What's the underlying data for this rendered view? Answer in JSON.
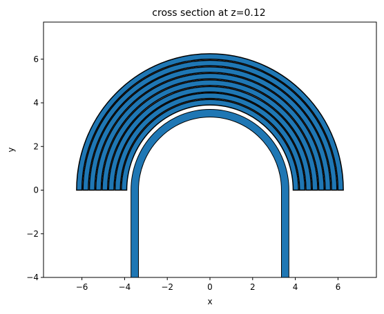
{
  "chart_data": {
    "type": "area",
    "title": "cross section at z=0.12",
    "xlabel": "x",
    "ylabel": "y",
    "xlim": [
      -7.8,
      7.8
    ],
    "ylim": [
      -4,
      7.7
    ],
    "xticks": [
      -6,
      -4,
      -2,
      0,
      2,
      4,
      6
    ],
    "yticks": [
      -4,
      -2,
      0,
      2,
      4,
      6
    ],
    "xtick_labels": [
      "−6",
      "−4",
      "−2",
      "0",
      "2",
      "4",
      "6"
    ],
    "ytick_labels": [
      "−4",
      "−2",
      "0",
      "2",
      "4",
      "6"
    ],
    "grid": false,
    "fill_color": "#1f77b4",
    "edge_color": "#000000",
    "waveguide": {
      "description_shape": "U-bend ring waveguide",
      "inner_radius": 3.35,
      "outer_radius": 3.7,
      "straight_y_start": -4,
      "straight_y_end": 0
    },
    "rings": [
      {
        "inner_radius": 3.9,
        "outer_radius": 4.15
      },
      {
        "inner_radius": 4.2,
        "outer_radius": 4.45
      },
      {
        "inner_radius": 4.5,
        "outer_radius": 4.75
      },
      {
        "inner_radius": 4.8,
        "outer_radius": 5.05
      },
      {
        "inner_radius": 5.1,
        "outer_radius": 5.35
      },
      {
        "inner_radius": 5.4,
        "outer_radius": 5.65
      },
      {
        "inner_radius": 5.7,
        "outer_radius": 5.95
      },
      {
        "inner_radius": 6.0,
        "outer_radius": 6.25
      }
    ]
  }
}
